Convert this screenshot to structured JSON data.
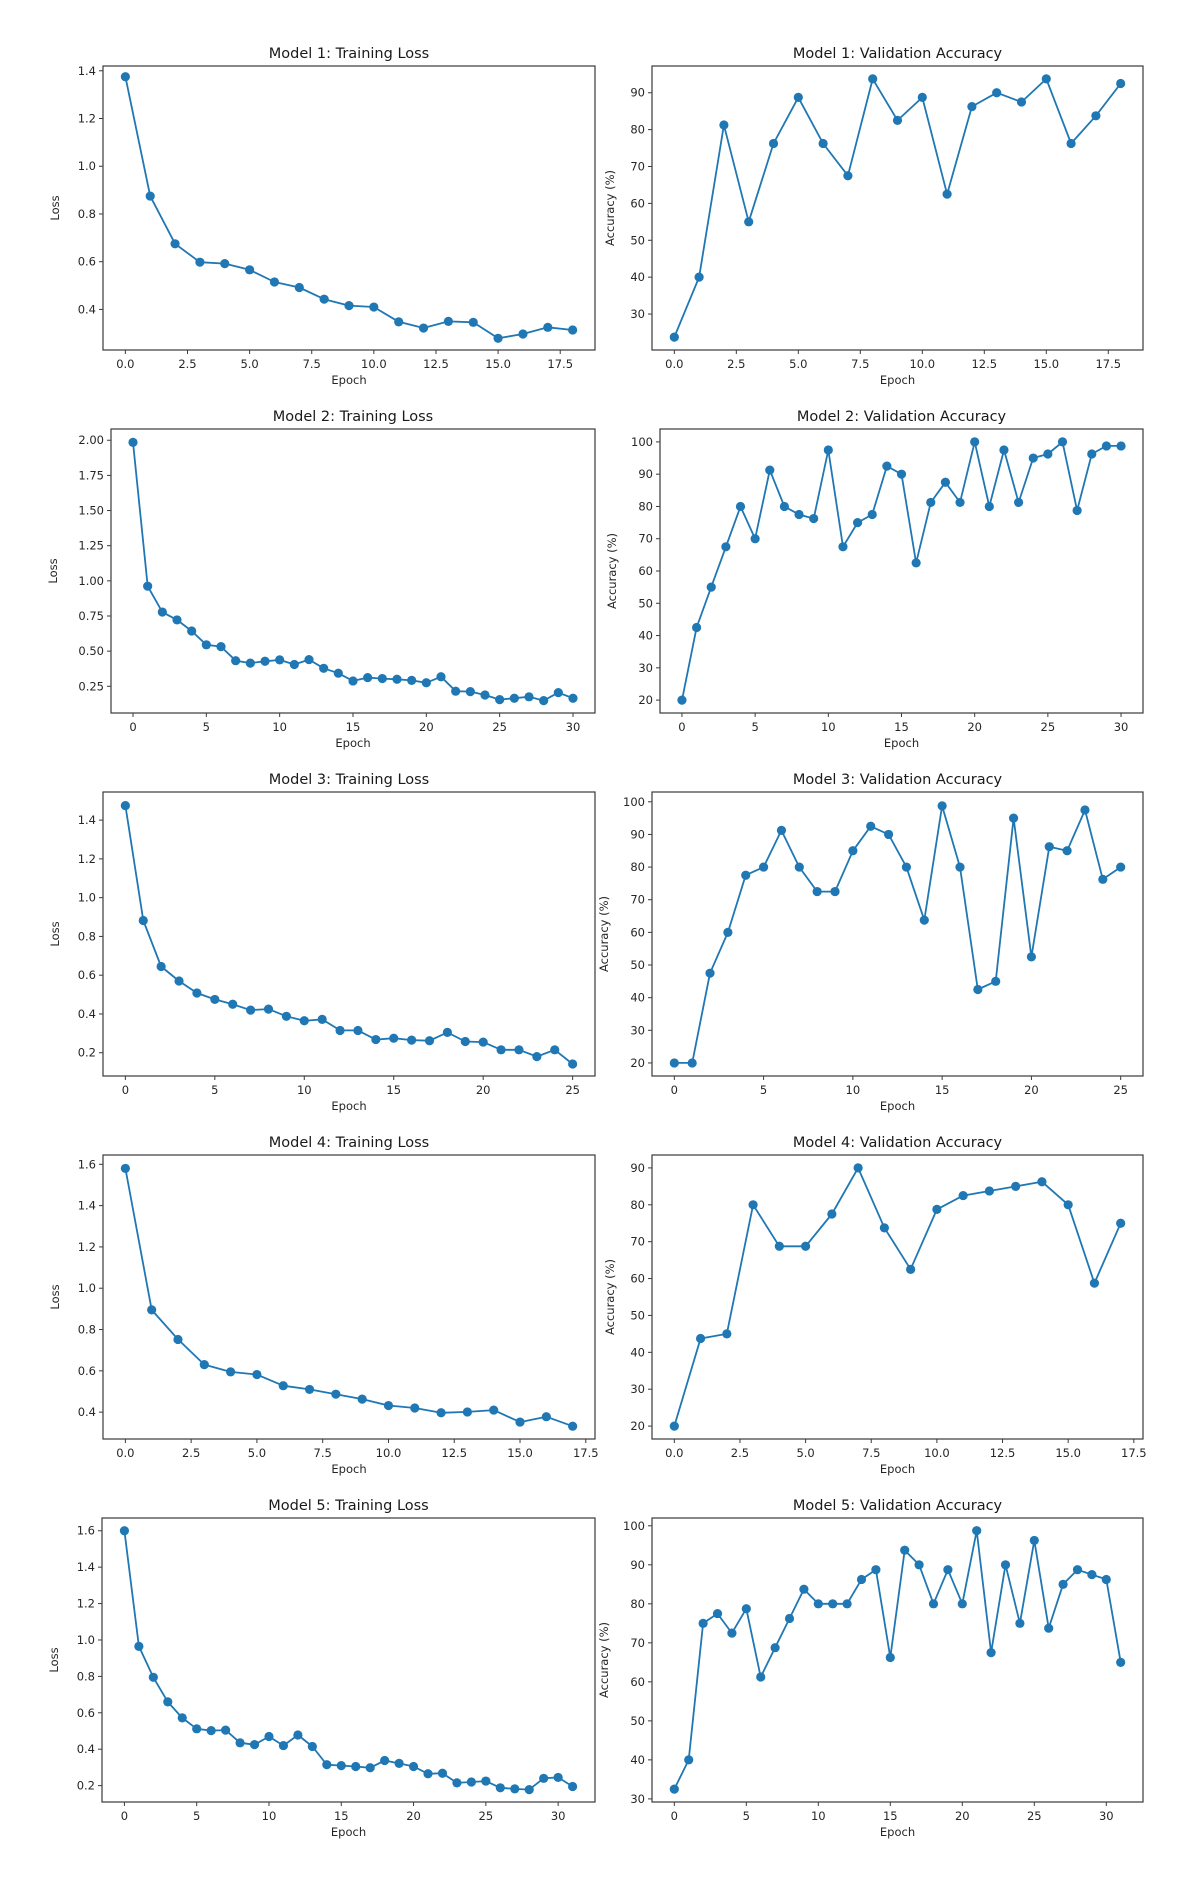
{
  "figure": {
    "line_color": "#1f77b4"
  },
  "chart_data": [
    {
      "type": "line",
      "title": "Model 1: Training Loss",
      "xlabel": "Epoch",
      "ylabel": "Loss",
      "x": [
        0,
        1,
        2,
        3,
        4,
        5,
        6,
        7,
        8,
        9,
        10,
        11,
        12,
        13,
        14,
        15,
        16,
        17,
        18
      ],
      "values": [
        1.375,
        0.875,
        0.675,
        0.598,
        0.592,
        0.566,
        0.515,
        0.492,
        0.443,
        0.416,
        0.41,
        0.348,
        0.322,
        0.35,
        0.346,
        0.279,
        0.297,
        0.325,
        0.314
      ],
      "xlim": [
        -0.9,
        18.9
      ],
      "ylim": [
        0.23,
        1.42
      ],
      "xticks": [
        0,
        2.5,
        5,
        7.5,
        10,
        12.5,
        15,
        17.5
      ],
      "xtick_labels": [
        "0.0",
        "2.5",
        "5.0",
        "7.5",
        "10.0",
        "12.5",
        "15.0",
        "17.5"
      ],
      "yticks": [
        0.4,
        0.6,
        0.8,
        1.0,
        1.2,
        1.4
      ],
      "ytick_labels": [
        "0.4",
        "0.6",
        "0.8",
        "1.0",
        "1.2",
        "1.4"
      ],
      "grid": false
    },
    {
      "type": "line",
      "title": "Model 1: Validation Accuracy",
      "xlabel": "Epoch",
      "ylabel": "Accuracy (%)",
      "x": [
        0,
        1,
        2,
        3,
        4,
        5,
        6,
        7,
        8,
        9,
        10,
        11,
        12,
        13,
        14,
        15,
        16,
        17,
        18
      ],
      "values": [
        23.75,
        40,
        81.25,
        55,
        76.25,
        88.75,
        76.25,
        67.5,
        93.75,
        82.5,
        88.75,
        62.5,
        86.25,
        90,
        87.5,
        93.75,
        76.25,
        83.75,
        92.5
      ],
      "xlim": [
        -0.9,
        18.9
      ],
      "ylim": [
        20.25,
        97.25
      ],
      "xticks": [
        0,
        2.5,
        5,
        7.5,
        10,
        12.5,
        15,
        17.5
      ],
      "xtick_labels": [
        "0.0",
        "2.5",
        "5.0",
        "7.5",
        "10.0",
        "12.5",
        "15.0",
        "17.5"
      ],
      "yticks": [
        30,
        40,
        50,
        60,
        70,
        80,
        90
      ],
      "ytick_labels": [
        "30",
        "40",
        "50",
        "60",
        "70",
        "80",
        "90"
      ],
      "grid": false
    },
    {
      "type": "line",
      "title": "Model 2: Training Loss",
      "xlabel": "Epoch",
      "ylabel": "Loss",
      "x": [
        0,
        1,
        2,
        3,
        4,
        5,
        6,
        7,
        8,
        9,
        10,
        11,
        12,
        13,
        14,
        15,
        16,
        17,
        18,
        19,
        20,
        21,
        22,
        23,
        24,
        25,
        26,
        27,
        28,
        29,
        30
      ],
      "values": [
        1.985,
        0.962,
        0.778,
        0.722,
        0.643,
        0.545,
        0.532,
        0.432,
        0.415,
        0.428,
        0.438,
        0.405,
        0.44,
        0.378,
        0.343,
        0.288,
        0.312,
        0.305,
        0.3,
        0.292,
        0.275,
        0.318,
        0.215,
        0.212,
        0.188,
        0.155,
        0.165,
        0.175,
        0.148,
        0.205,
        0.165
      ],
      "xlim": [
        -1.5,
        31.5
      ],
      "ylim": [
        0.06,
        2.08
      ],
      "xticks": [
        0,
        5,
        10,
        15,
        20,
        25,
        30
      ],
      "xtick_labels": [
        "0",
        "5",
        "10",
        "15",
        "20",
        "25",
        "30"
      ],
      "yticks": [
        0.25,
        0.5,
        0.75,
        1.0,
        1.25,
        1.5,
        1.75,
        2.0
      ],
      "ytick_labels": [
        "0.25",
        "0.50",
        "0.75",
        "1.00",
        "1.25",
        "1.50",
        "1.75",
        "2.00"
      ],
      "grid": false
    },
    {
      "type": "line",
      "title": "Model 2: Validation Accuracy",
      "xlabel": "Epoch",
      "ylabel": "Accuracy (%)",
      "x": [
        0,
        1,
        2,
        3,
        4,
        5,
        6,
        7,
        8,
        9,
        10,
        11,
        12,
        13,
        14,
        15,
        16,
        17,
        18,
        19,
        20,
        21,
        22,
        23,
        24,
        25,
        26,
        27,
        28,
        29,
        30
      ],
      "values": [
        20,
        42.5,
        55,
        67.5,
        80,
        70,
        91.25,
        80,
        77.5,
        76.25,
        97.5,
        67.5,
        75,
        77.5,
        92.5,
        90,
        62.5,
        81.25,
        87.5,
        81.25,
        100,
        80,
        97.5,
        81.25,
        95,
        96.25,
        100,
        78.75,
        96.25,
        98.75,
        98.75
      ],
      "xlim": [
        -1.5,
        31.5
      ],
      "ylim": [
        16,
        104
      ],
      "xticks": [
        0,
        5,
        10,
        15,
        20,
        25,
        30
      ],
      "xtick_labels": [
        "0",
        "5",
        "10",
        "15",
        "20",
        "25",
        "30"
      ],
      "yticks": [
        20,
        30,
        40,
        50,
        60,
        70,
        80,
        90,
        100
      ],
      "ytick_labels": [
        "20",
        "30",
        "40",
        "50",
        "60",
        "70",
        "80",
        "90",
        "100"
      ],
      "grid": false
    },
    {
      "type": "line",
      "title": "Model 3: Training Loss",
      "xlabel": "Epoch",
      "ylabel": "Loss",
      "x": [
        0,
        1,
        2,
        3,
        4,
        5,
        6,
        7,
        8,
        9,
        10,
        11,
        12,
        13,
        14,
        15,
        16,
        17,
        18,
        19,
        20,
        21,
        22,
        23,
        24,
        25
      ],
      "values": [
        1.475,
        0.882,
        0.645,
        0.57,
        0.508,
        0.475,
        0.45,
        0.42,
        0.425,
        0.388,
        0.365,
        0.372,
        0.315,
        0.315,
        0.268,
        0.275,
        0.265,
        0.262,
        0.305,
        0.258,
        0.255,
        0.215,
        0.215,
        0.18,
        0.215,
        0.142
      ],
      "xlim": [
        -1.25,
        26.25
      ],
      "ylim": [
        0.08,
        1.545
      ],
      "xticks": [
        0,
        5,
        10,
        15,
        20,
        25
      ],
      "xtick_labels": [
        "0",
        "5",
        "10",
        "15",
        "20",
        "25"
      ],
      "yticks": [
        0.2,
        0.4,
        0.6,
        0.8,
        1.0,
        1.2,
        1.4
      ],
      "ytick_labels": [
        "0.2",
        "0.4",
        "0.6",
        "0.8",
        "1.0",
        "1.2",
        "1.4"
      ],
      "grid": false
    },
    {
      "type": "line",
      "title": "Model 3: Validation Accuracy",
      "xlabel": "Epoch",
      "ylabel": "Accuracy (%)",
      "x": [
        0,
        1,
        2,
        3,
        4,
        5,
        6,
        7,
        8,
        9,
        10,
        11,
        12,
        13,
        14,
        15,
        16,
        17,
        18,
        19,
        20,
        21,
        22,
        23,
        24,
        25
      ],
      "values": [
        20,
        20,
        47.5,
        60,
        77.5,
        80,
        91.25,
        80,
        72.5,
        72.5,
        85,
        92.5,
        90,
        80,
        63.75,
        98.75,
        80,
        42.5,
        45,
        95,
        52.5,
        86.25,
        85,
        97.5,
        76.25,
        80
      ],
      "xlim": [
        -1.25,
        26.25
      ],
      "ylim": [
        16,
        103
      ],
      "xticks": [
        0,
        5,
        10,
        15,
        20,
        25
      ],
      "xtick_labels": [
        "0",
        "5",
        "10",
        "15",
        "20",
        "25"
      ],
      "yticks": [
        20,
        30,
        40,
        50,
        60,
        70,
        80,
        90,
        100
      ],
      "ytick_labels": [
        "20",
        "30",
        "40",
        "50",
        "60",
        "70",
        "80",
        "90",
        "100"
      ],
      "grid": false
    },
    {
      "type": "line",
      "title": "Model 4: Training Loss",
      "xlabel": "Epoch",
      "ylabel": "Loss",
      "x": [
        0,
        1,
        2,
        3,
        4,
        5,
        6,
        7,
        8,
        9,
        10,
        11,
        12,
        13,
        14,
        15,
        16,
        17
      ],
      "values": [
        1.58,
        0.895,
        0.752,
        0.63,
        0.595,
        0.582,
        0.528,
        0.51,
        0.487,
        0.463,
        0.432,
        0.42,
        0.397,
        0.401,
        0.41,
        0.352,
        0.378,
        0.332
      ],
      "xlim": [
        -0.85,
        17.85
      ],
      "ylim": [
        0.27,
        1.645
      ],
      "xticks": [
        0,
        2.5,
        5,
        7.5,
        10,
        12.5,
        15,
        17.5
      ],
      "xtick_labels": [
        "0.0",
        "2.5",
        "5.0",
        "7.5",
        "10.0",
        "12.5",
        "15.0",
        "17.5"
      ],
      "yticks": [
        0.4,
        0.6,
        0.8,
        1.0,
        1.2,
        1.4,
        1.6
      ],
      "ytick_labels": [
        "0.4",
        "0.6",
        "0.8",
        "1.0",
        "1.2",
        "1.4",
        "1.6"
      ],
      "grid": false
    },
    {
      "type": "line",
      "title": "Model 4: Validation Accuracy",
      "xlabel": "Epoch",
      "ylabel": "Accuracy (%)",
      "x": [
        0,
        1,
        2,
        3,
        4,
        5,
        6,
        7,
        8,
        9,
        10,
        11,
        12,
        13,
        14,
        15,
        16,
        17
      ],
      "values": [
        20,
        43.75,
        45,
        80,
        68.75,
        68.75,
        77.5,
        90,
        73.75,
        62.5,
        78.75,
        82.5,
        83.75,
        85,
        86.25,
        80,
        58.75,
        75
      ],
      "xlim": [
        -0.85,
        17.85
      ],
      "ylim": [
        16.5,
        93.5
      ],
      "xticks": [
        0,
        2.5,
        5,
        7.5,
        10,
        12.5,
        15,
        17.5
      ],
      "xtick_labels": [
        "0.0",
        "2.5",
        "5.0",
        "7.5",
        "10.0",
        "12.5",
        "15.0",
        "17.5"
      ],
      "yticks": [
        20,
        30,
        40,
        50,
        60,
        70,
        80,
        90
      ],
      "ytick_labels": [
        "20",
        "30",
        "40",
        "50",
        "60",
        "70",
        "80",
        "90"
      ],
      "grid": false
    },
    {
      "type": "line",
      "title": "Model 5: Training Loss",
      "xlabel": "Epoch",
      "ylabel": "Loss",
      "x": [
        0,
        1,
        2,
        3,
        4,
        5,
        6,
        7,
        8,
        9,
        10,
        11,
        12,
        13,
        14,
        15,
        16,
        17,
        18,
        19,
        20,
        21,
        22,
        23,
        24,
        25,
        26,
        27,
        28,
        29,
        30,
        31
      ],
      "values": [
        1.6,
        0.965,
        0.795,
        0.66,
        0.572,
        0.512,
        0.502,
        0.505,
        0.435,
        0.425,
        0.47,
        0.42,
        0.478,
        0.415,
        0.315,
        0.31,
        0.305,
        0.298,
        0.338,
        0.322,
        0.305,
        0.265,
        0.268,
        0.215,
        0.22,
        0.225,
        0.188,
        0.182,
        0.178,
        0.24,
        0.245,
        0.195
      ],
      "xlim": [
        -1.55,
        32.55
      ],
      "ylim": [
        0.11,
        1.67
      ],
      "xticks": [
        0,
        5,
        10,
        15,
        20,
        25,
        30
      ],
      "xtick_labels": [
        "0",
        "5",
        "10",
        "15",
        "20",
        "25",
        "30"
      ],
      "yticks": [
        0.2,
        0.4,
        0.6,
        0.8,
        1.0,
        1.2,
        1.4,
        1.6
      ],
      "ytick_labels": [
        "0.2",
        "0.4",
        "0.6",
        "0.8",
        "1.0",
        "1.2",
        "1.4",
        "1.6"
      ],
      "grid": false
    },
    {
      "type": "line",
      "title": "Model 5: Validation Accuracy",
      "xlabel": "Epoch",
      "ylabel": "Accuracy (%)",
      "x": [
        0,
        1,
        2,
        3,
        4,
        5,
        6,
        7,
        8,
        9,
        10,
        11,
        12,
        13,
        14,
        15,
        16,
        17,
        18,
        19,
        20,
        21,
        22,
        23,
        24,
        25,
        26,
        27,
        28,
        29,
        30,
        31
      ],
      "values": [
        32.5,
        40,
        75,
        77.5,
        72.5,
        78.75,
        61.25,
        68.75,
        76.25,
        83.75,
        80,
        80,
        80,
        86.25,
        88.75,
        66.25,
        93.75,
        90,
        80,
        88.75,
        80,
        98.75,
        67.5,
        90,
        75,
        96.25,
        73.75,
        85,
        88.75,
        87.5,
        86.25,
        65
      ],
      "xlim": [
        -1.55,
        32.55
      ],
      "ylim": [
        29.2,
        102
      ],
      "xticks": [
        0,
        5,
        10,
        15,
        20,
        25,
        30
      ],
      "xtick_labels": [
        "0",
        "5",
        "10",
        "15",
        "20",
        "25",
        "30"
      ],
      "yticks": [
        30,
        40,
        50,
        60,
        70,
        80,
        90,
        100
      ],
      "ytick_labels": [
        "30",
        "40",
        "50",
        "60",
        "70",
        "80",
        "90",
        "100"
      ],
      "grid": false
    }
  ]
}
